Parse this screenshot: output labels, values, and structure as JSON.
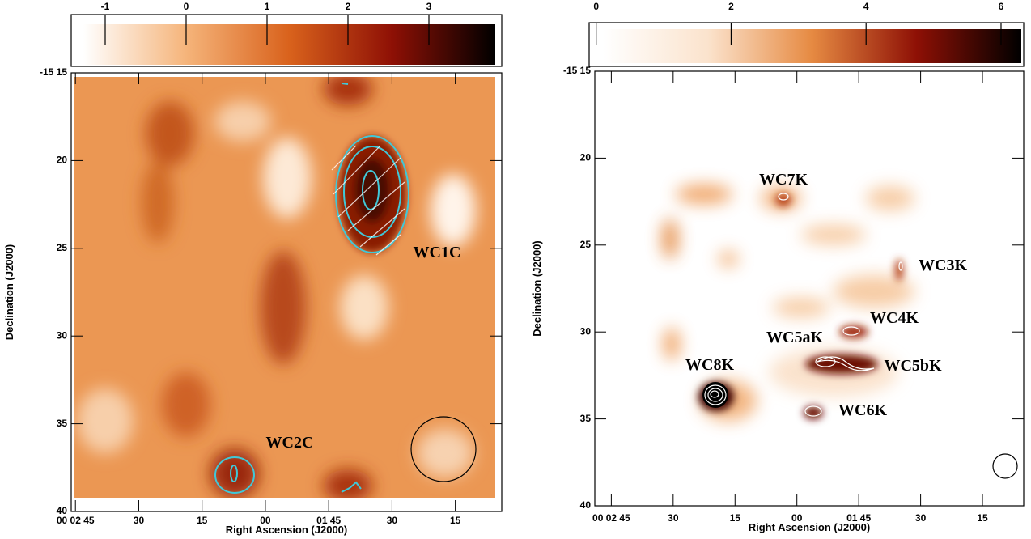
{
  "chart_data": [
    {
      "type": "heatmap",
      "x_label": "Right Ascension (J2000)",
      "y_label": "Declination (J2000)",
      "xlim": [
        166,
        64
      ],
      "ylim": [
        15,
        40
      ],
      "xticks": [
        {
          "value": 165,
          "label": "00 02 45"
        },
        {
          "value": 150,
          "label": "30"
        },
        {
          "value": 135,
          "label": "15"
        },
        {
          "value": 120,
          "label": "00"
        },
        {
          "value": 105,
          "label": "01 45"
        },
        {
          "value": 90,
          "label": "30"
        },
        {
          "value": 75,
          "label": "15"
        }
      ],
      "yticks": [
        {
          "value": 15,
          "label": "-15 15"
        },
        20,
        25,
        30,
        35,
        40
      ],
      "colorbar": {
        "lim": [
          -1.27,
          3.82
        ],
        "ticks": [
          -1,
          0,
          1,
          2,
          3
        ],
        "colors": [
          "#ffffff",
          "#f5b47a",
          "#d9621c",
          "#8e1005",
          "#000000"
        ]
      },
      "annotations": [
        "WC1C",
        "WC2C"
      ]
    },
    {
      "type": "heatmap",
      "x_label": "Right Ascension (J2000)",
      "y_label": "Declination (J2000)",
      "xlim": [
        169,
        65
      ],
      "ylim": [
        15,
        40
      ],
      "xticks": [
        {
          "value": 165,
          "label": "00 02 45"
        },
        {
          "value": 150,
          "label": "30"
        },
        {
          "value": 135,
          "label": "15"
        },
        {
          "value": 120,
          "label": "00"
        },
        {
          "value": 105,
          "label": "01 45"
        },
        {
          "value": 90,
          "label": "30"
        },
        {
          "value": 75,
          "label": "15"
        }
      ],
      "yticks": [
        {
          "value": 15,
          "label": "-15 15"
        },
        20,
        25,
        30,
        35,
        40
      ],
      "colorbar": {
        "lim": [
          0.1,
          6.3
        ],
        "ticks": [
          0,
          2,
          4,
          6
        ],
        "colors": [
          "#ffffff",
          "#fbe3cd",
          "#e68a42",
          "#8e1005",
          "#000000"
        ]
      },
      "annotations": [
        "WC7K",
        "WC3K",
        "WC4K",
        "WC5aK",
        "WC5bK",
        "WC8K",
        "WC6K"
      ]
    }
  ]
}
